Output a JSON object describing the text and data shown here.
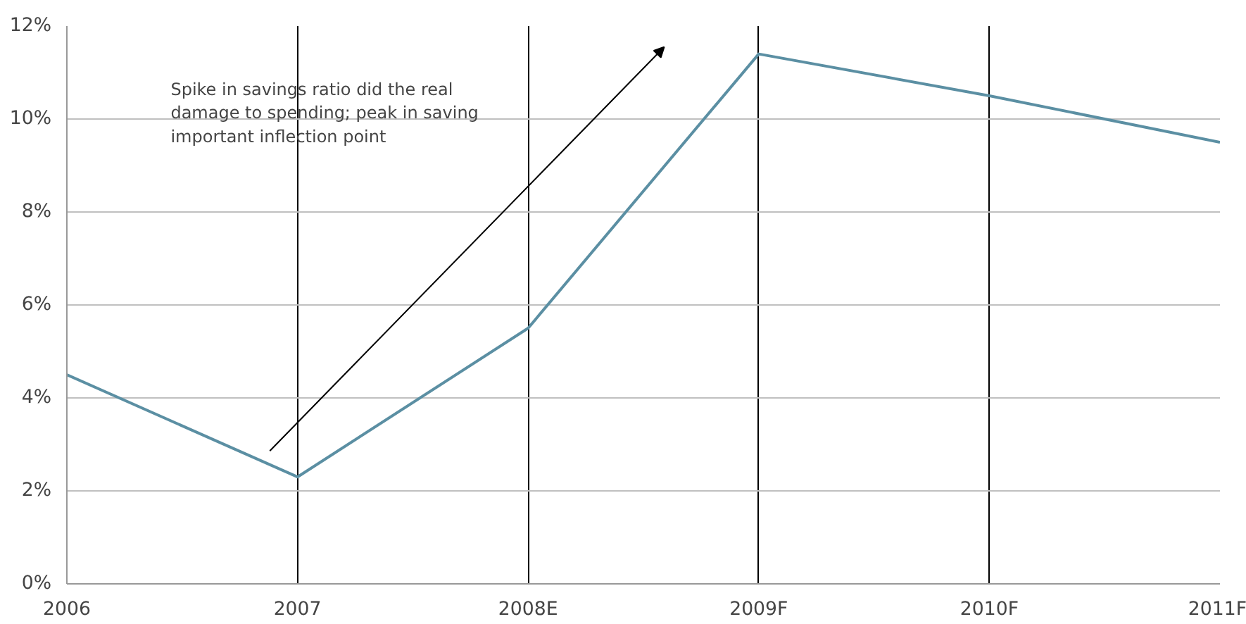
{
  "chart_data": {
    "type": "line",
    "categories": [
      "2006",
      "2007",
      "2008E",
      "2009F",
      "2010F",
      "2011F"
    ],
    "series": [
      {
        "color": "#5b8fa3",
        "values": [
          4.5,
          2.3,
          5.5,
          11.4,
          10.5,
          9.5
        ]
      }
    ],
    "ylim": [
      0,
      12
    ],
    "yticks": [
      {
        "value": 0,
        "label": "0%"
      },
      {
        "value": 2,
        "label": "2%"
      },
      {
        "value": 4,
        "label": "4%"
      },
      {
        "value": 6,
        "label": "6%"
      },
      {
        "value": 8,
        "label": "8%"
      },
      {
        "value": 10,
        "label": "10%"
      },
      {
        "value": 12,
        "label": "12%"
      }
    ],
    "grid": true,
    "marker": "none",
    "line_style": "solid",
    "annotations": [
      "Spike in savings ratio did the real\ndamage to spending; peak in saving\nimportant inflection point"
    ]
  }
}
